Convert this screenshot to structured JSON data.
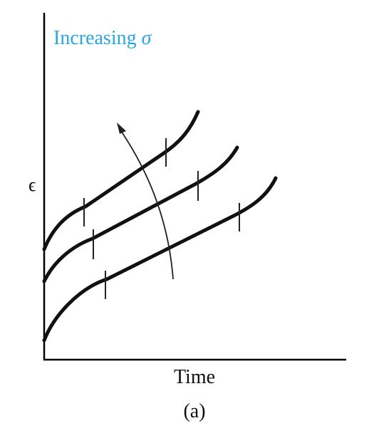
{
  "annotation": {
    "text": "Increasing",
    "symbol": "σ"
  },
  "y_axis_label": "ϵ",
  "x_axis_label": "Time",
  "caption": "(a)"
}
